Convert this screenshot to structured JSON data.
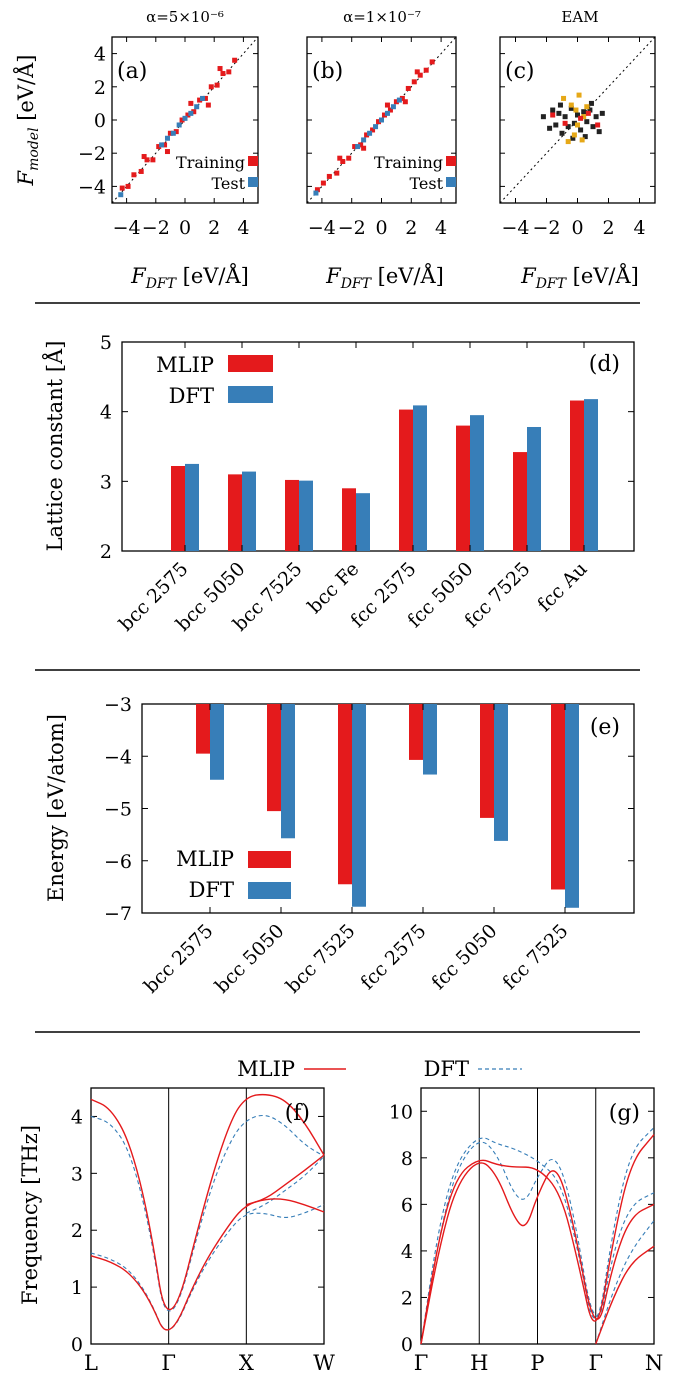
{
  "colors": {
    "mlip": "#e41a1c",
    "dft": "#377eb8",
    "train": "#e41a1c",
    "test": "#377eb8",
    "eam_bulk": "#222222",
    "eam_highlight": "#e6a817"
  },
  "labels": {
    "panel_a": "(a)",
    "panel_b": "(b)",
    "panel_c": "(c)",
    "panel_d": "(d)",
    "panel_e": "(e)",
    "panel_f": "(f)",
    "panel_g": "(g)",
    "title_a": "α=5×10⁻⁶",
    "title_b": "α=1×10⁻⁷",
    "title_c": "EAM",
    "x_label_parity": "F_DFT [eV/Å]",
    "y_label_parity": "F_model [eV/Å]",
    "legend_training": "Training",
    "legend_test": "Test",
    "legend_mlip": "MLIP",
    "legend_dft": "DFT",
    "y_label_d": "Lattice constant [Å]",
    "y_label_e": "Energy [eV/atom]",
    "y_label_f": "Frequency [THz]"
  },
  "chart_data": [
    {
      "type": "scatter",
      "panel": "(a)",
      "title": "α=5×10⁻⁶",
      "xlabel": "F_DFT [eV/Å]",
      "ylabel": "F_model [eV/Å]",
      "xlim": [
        -5,
        5
      ],
      "ylim": [
        -5,
        5
      ],
      "xticks": [
        -4,
        -2,
        0,
        2,
        4
      ],
      "yticks": [
        -4,
        -2,
        0,
        2,
        4
      ],
      "series": [
        {
          "name": "Training",
          "points": [
            [
              -4.3,
              -4.1
            ],
            [
              -3.9,
              -4.0
            ],
            [
              -3.5,
              -3.3
            ],
            [
              -3.0,
              -3.1
            ],
            [
              -2.6,
              -2.4
            ],
            [
              -2.2,
              -2.4
            ],
            [
              -1.8,
              -1.6
            ],
            [
              -1.4,
              -1.5
            ],
            [
              -1.0,
              -0.8
            ],
            [
              -0.6,
              -0.7
            ],
            [
              -0.2,
              0.0
            ],
            [
              0.2,
              0.3
            ],
            [
              0.6,
              0.5
            ],
            [
              1.0,
              1.2
            ],
            [
              1.4,
              1.3
            ],
            [
              1.8,
              2.0
            ],
            [
              2.2,
              2.1
            ],
            [
              2.6,
              2.8
            ],
            [
              3.0,
              2.9
            ],
            [
              3.4,
              3.6
            ],
            [
              -2.8,
              -2.2
            ],
            [
              -1.2,
              -1.9
            ],
            [
              0.4,
              1.0
            ],
            [
              1.6,
              0.9
            ],
            [
              2.4,
              3.1
            ]
          ]
        },
        {
          "name": "Test",
          "points": [
            [
              -4.4,
              -4.5
            ],
            [
              -1.6,
              -1.5
            ],
            [
              -1.2,
              -1.1
            ],
            [
              -0.8,
              -0.8
            ],
            [
              -0.4,
              -0.3
            ],
            [
              0.0,
              0.1
            ],
            [
              0.4,
              0.4
            ],
            [
              0.8,
              0.8
            ],
            [
              1.2,
              1.3
            ]
          ]
        }
      ],
      "reference_line": "y = x"
    },
    {
      "type": "scatter",
      "panel": "(b)",
      "title": "α=1×10⁻⁷",
      "xlabel": "F_DFT [eV/Å]",
      "ylabel": "",
      "xlim": [
        -5,
        5
      ],
      "ylim": [
        -5,
        5
      ],
      "xticks": [
        -4,
        -2,
        0,
        2,
        4
      ],
      "series": [
        {
          "name": "Training",
          "points": [
            [
              -4.3,
              -4.2
            ],
            [
              -3.9,
              -3.8
            ],
            [
              -3.5,
              -3.4
            ],
            [
              -3.0,
              -3.2
            ],
            [
              -2.6,
              -2.5
            ],
            [
              -2.2,
              -2.3
            ],
            [
              -1.8,
              -1.6
            ],
            [
              -1.4,
              -1.5
            ],
            [
              -1.0,
              -0.9
            ],
            [
              -0.6,
              -0.6
            ],
            [
              -0.2,
              -0.1
            ],
            [
              0.2,
              0.3
            ],
            [
              0.6,
              0.6
            ],
            [
              1.0,
              1.1
            ],
            [
              1.4,
              1.3
            ],
            [
              1.8,
              1.9
            ],
            [
              2.2,
              2.3
            ],
            [
              2.6,
              2.7
            ],
            [
              3.0,
              3.0
            ],
            [
              3.4,
              3.5
            ],
            [
              -2.8,
              -2.3
            ],
            [
              -1.2,
              -1.7
            ],
            [
              0.4,
              0.9
            ],
            [
              1.6,
              1.1
            ],
            [
              2.4,
              2.9
            ]
          ]
        },
        {
          "name": "Test",
          "points": [
            [
              -4.4,
              -4.4
            ],
            [
              -1.6,
              -1.6
            ],
            [
              -1.2,
              -1.2
            ],
            [
              -0.8,
              -0.8
            ],
            [
              -0.4,
              -0.4
            ],
            [
              0.0,
              0.0
            ],
            [
              0.4,
              0.4
            ],
            [
              0.8,
              0.8
            ],
            [
              1.2,
              1.2
            ]
          ]
        }
      ],
      "reference_line": "y = x"
    },
    {
      "type": "scatter",
      "panel": "(c)",
      "title": "EAM",
      "xlabel": "F_DFT [eV/Å]",
      "ylabel": "",
      "xlim": [
        -5,
        5
      ],
      "ylim": [
        -5,
        5
      ],
      "xticks": [
        -4,
        -2,
        0,
        2,
        4
      ],
      "series": [
        {
          "name": "",
          "color": "#222222",
          "points": [
            [
              -2.2,
              0.2
            ],
            [
              -1.8,
              -0.5
            ],
            [
              -1.6,
              0.6
            ],
            [
              -1.4,
              -0.3
            ],
            [
              -1.2,
              0.4
            ],
            [
              -1.0,
              -0.8
            ],
            [
              -0.8,
              0.2
            ],
            [
              -0.6,
              -0.4
            ],
            [
              -0.4,
              0.7
            ],
            [
              -0.2,
              -0.2
            ],
            [
              0.0,
              0.3
            ],
            [
              0.2,
              -0.6
            ],
            [
              0.4,
              0.5
            ],
            [
              0.6,
              -0.1
            ],
            [
              0.8,
              0.6
            ],
            [
              1.0,
              -0.4
            ],
            [
              1.2,
              0.2
            ],
            [
              1.4,
              -0.7
            ],
            [
              1.6,
              0.4
            ],
            [
              -1.1,
              0.9
            ],
            [
              0.5,
              -1.0
            ],
            [
              0.9,
              1.0
            ],
            [
              -0.3,
              -1.1
            ]
          ]
        },
        {
          "name": "",
          "color": "#e6a817",
          "points": [
            [
              -0.9,
              1.3
            ],
            [
              -0.4,
              0.9
            ],
            [
              0.1,
              1.5
            ],
            [
              0.3,
              -1.2
            ],
            [
              -0.2,
              -0.9
            ],
            [
              0.6,
              0.8
            ],
            [
              0.0,
              -0.3
            ],
            [
              -0.6,
              -1.3
            ],
            [
              0.4,
              0.2
            ],
            [
              -0.1,
              0.6
            ]
          ]
        },
        {
          "name": "",
          "color": "#e41a1c",
          "points": [
            [
              -1.6,
              0.3
            ],
            [
              -0.8,
              -0.2
            ],
            [
              0.7,
              0.4
            ],
            [
              1.3,
              -0.3
            ],
            [
              0.2,
              0.1
            ]
          ]
        }
      ],
      "reference_line": "y = x"
    },
    {
      "type": "bar",
      "panel": "(d)",
      "categories": [
        "bcc 2575",
        "bcc 5050",
        "bcc 7525",
        "bcc Fe",
        "fcc 2575",
        "fcc 5050",
        "fcc 7525",
        "fcc Au"
      ],
      "series": [
        {
          "name": "MLIP",
          "values": [
            3.22,
            3.1,
            3.02,
            2.9,
            4.03,
            3.8,
            3.42,
            4.16
          ]
        },
        {
          "name": "DFT",
          "values": [
            3.25,
            3.14,
            3.01,
            2.83,
            4.09,
            3.95,
            3.78,
            4.18
          ]
        }
      ],
      "xlabel": "",
      "ylabel": "Lattice constant [Å]",
      "ylim": [
        2,
        5
      ],
      "yticks": [
        2,
        3,
        4,
        5
      ],
      "legend": "top-left"
    },
    {
      "type": "bar",
      "panel": "(e)",
      "categories": [
        "bcc 2575",
        "bcc 5050",
        "bcc 7525",
        "fcc 2575",
        "fcc 5050",
        "fcc 7525"
      ],
      "series": [
        {
          "name": "MLIP",
          "values": [
            -3.95,
            -5.05,
            -6.45,
            -4.07,
            -5.18,
            -6.55
          ]
        },
        {
          "name": "DFT",
          "values": [
            -4.45,
            -5.57,
            -6.88,
            -4.35,
            -5.62,
            -6.9
          ]
        }
      ],
      "xlabel": "",
      "ylabel": "Energy [eV/atom]",
      "ylim": [
        -7,
        -3
      ],
      "yticks": [
        -7,
        -6,
        -5,
        -4,
        -3
      ],
      "legend": "bottom-left"
    },
    {
      "type": "line",
      "panel": "(f)",
      "xticks": [
        "L",
        "Γ",
        "X",
        "W"
      ],
      "xlim": [
        0,
        3
      ],
      "ylabel": "Frequency [THz]",
      "ylim": [
        0,
        4.5
      ],
      "yticks": [
        0,
        1,
        2,
        3,
        4
      ],
      "series": [
        {
          "name": "MLIP",
          "style": "solid",
          "branches": [
            {
              "x": [
                0,
                0.25,
                0.5,
                0.75,
                1.0,
                1.5,
                1.8,
                2.0,
                2.25,
                2.5,
                2.75,
                3.0
              ],
              "y": [
                4.3,
                4.15,
                3.55,
                2.2,
                0.0,
                2.7,
                3.95,
                4.35,
                4.4,
                4.3,
                3.9,
                3.32
              ]
            },
            {
              "x": [
                0,
                0.25,
                0.5,
                0.75,
                1.0,
                1.4,
                1.8,
                2.0,
                2.25,
                2.5,
                2.75,
                3.0
              ],
              "y": [
                1.55,
                1.45,
                1.25,
                0.8,
                0.0,
                1.3,
                2.15,
                2.45,
                2.55,
                2.55,
                2.45,
                2.32
              ]
            },
            {
              "x": [
                2.0,
                2.25,
                2.5,
                2.75,
                3.0
              ],
              "y": [
                2.45,
                2.55,
                2.8,
                3.05,
                3.32
              ]
            }
          ]
        },
        {
          "name": "DFT",
          "style": "dashed",
          "branches": [
            {
              "x": [
                0,
                0.25,
                0.5,
                0.75,
                1.0,
                1.5,
                1.8,
                2.0,
                2.25,
                2.5,
                2.75,
                3.0
              ],
              "y": [
                4.0,
                3.9,
                3.4,
                2.1,
                0.0,
                2.6,
                3.6,
                3.95,
                4.05,
                3.85,
                3.5,
                3.3
              ]
            },
            {
              "x": [
                0,
                0.25,
                0.5,
                0.75,
                1.0,
                1.4,
                1.8,
                2.0,
                2.25,
                2.5,
                2.75,
                3.0
              ],
              "y": [
                1.6,
                1.5,
                1.3,
                0.82,
                0.0,
                1.25,
                2.05,
                2.3,
                2.3,
                2.2,
                2.3,
                2.45
              ]
            },
            {
              "x": [
                2.0,
                2.25,
                2.5,
                2.75,
                3.0
              ],
              "y": [
                2.3,
                2.45,
                2.7,
                2.95,
                3.3
              ]
            }
          ]
        }
      ]
    },
    {
      "type": "line",
      "panel": "(g)",
      "xticks": [
        "Γ",
        "H",
        "P",
        "Γ",
        "N"
      ],
      "xlim": [
        0,
        4
      ],
      "ylabel": "",
      "ylim": [
        0,
        11
      ],
      "yticks": [
        0,
        2,
        4,
        6,
        8,
        10
      ],
      "series": [
        {
          "name": "MLIP",
          "style": "solid",
          "branches": [
            {
              "x": [
                0,
                0.3,
                0.6,
                1.0,
                1.3,
                1.6,
                2.0,
                2.4,
                2.7,
                3.0,
                3.3,
                3.6,
                4.0
              ],
              "y": [
                0,
                4.5,
                7.2,
                8.0,
                7.7,
                7.6,
                7.6,
                6.5,
                3.5,
                0,
                4.5,
                7.8,
                9.0
              ]
            },
            {
              "x": [
                0,
                0.3,
                0.6,
                1.0,
                1.3,
                1.6,
                1.8,
                2.0,
                2.3,
                2.6,
                3.0,
                3.3,
                3.6,
                4.0
              ],
              "y": [
                0,
                4.0,
                6.8,
                8.0,
                7.3,
                5.4,
                4.9,
                6.4,
                7.9,
                5.5,
                0,
                3.5,
                5.5,
                6.0
              ]
            },
            {
              "x": [
                3.0,
                3.3,
                3.6,
                4.0
              ],
              "y": [
                0,
                2.0,
                3.5,
                4.2
              ]
            }
          ]
        },
        {
          "name": "DFT",
          "style": "dashed",
          "branches": [
            {
              "x": [
                0,
                0.3,
                0.6,
                1.0,
                1.3,
                1.6,
                2.0,
                2.4,
                2.7,
                3.0,
                3.3,
                3.6,
                4.0
              ],
              "y": [
                0,
                5.0,
                7.8,
                9.0,
                8.6,
                8.4,
                7.9,
                7.0,
                4.0,
                0,
                5.0,
                8.3,
                9.3
              ]
            },
            {
              "x": [
                0,
                0.3,
                0.6,
                1.0,
                1.3,
                1.6,
                1.8,
                2.0,
                2.3,
                2.6,
                3.0,
                3.3,
                3.6,
                4.0
              ],
              "y": [
                0,
                4.5,
                7.5,
                8.9,
                8.2,
                6.4,
                6.1,
                7.2,
                8.3,
                6.0,
                0,
                4.0,
                6.0,
                6.5
              ]
            },
            {
              "x": [
                3.0,
                3.3,
                3.6,
                4.0
              ],
              "y": [
                0,
                2.3,
                4.0,
                5.3
              ]
            }
          ]
        }
      ]
    }
  ]
}
